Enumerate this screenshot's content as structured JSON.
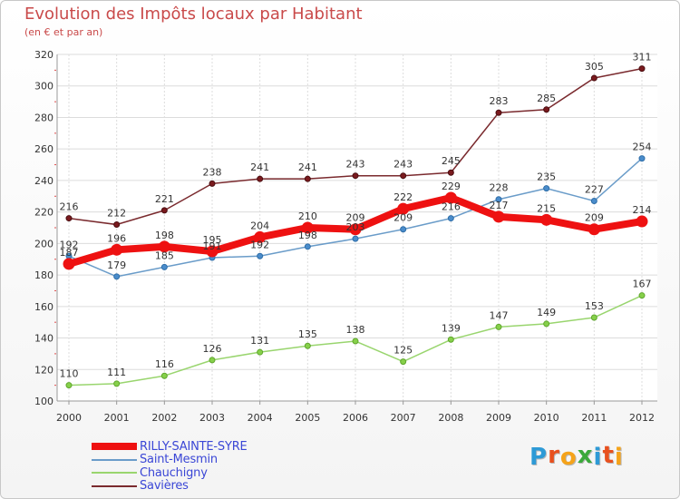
{
  "header": {
    "title": "Evolution des Impôts locaux par Habitant",
    "subtitle": "(en € et par an)"
  },
  "logo": {
    "text": "Proxiti",
    "colors": [
      "#2e9ad6",
      "#e8501e",
      "#f5a31a",
      "#3aa93a",
      "#2e9ad6",
      "#e8501e",
      "#f5a31a"
    ]
  },
  "chart_data": {
    "type": "line",
    "title": "Evolution des Impôts locaux par Habitant",
    "subtitle": "(en € et par an)",
    "xlabel": "",
    "ylabel": "",
    "categories": [
      "2000",
      "2001",
      "2002",
      "2003",
      "2004",
      "2005",
      "2006",
      "2007",
      "2008",
      "2009",
      "2010",
      "2011",
      "2012"
    ],
    "ylim": [
      100,
      320
    ],
    "yticks": [
      100,
      120,
      140,
      160,
      180,
      200,
      220,
      240,
      260,
      280,
      300,
      320
    ],
    "grid": true,
    "legend_position": "bottom-left",
    "series": [
      {
        "name": "RILLY-SAINTE-SYRE",
        "color": "#ee1111",
        "values": [
          187,
          196,
          198,
          195,
          204,
          210,
          209,
          222,
          229,
          217,
          215,
          209,
          214
        ]
      },
      {
        "name": "Saint-Mesmin",
        "color": "#6a9cc9",
        "values": [
          192,
          179,
          185,
          191,
          192,
          198,
          203,
          209,
          216,
          228,
          235,
          227,
          254
        ]
      },
      {
        "name": "Chauchigny",
        "color": "#99d56e",
        "values": [
          110,
          111,
          116,
          126,
          131,
          135,
          138,
          125,
          139,
          147,
          149,
          153,
          167
        ]
      },
      {
        "name": "Savières",
        "color": "#7a2a2e",
        "values": [
          216,
          212,
          221,
          238,
          241,
          241,
          243,
          243,
          245,
          283,
          285,
          305,
          311
        ]
      }
    ]
  }
}
